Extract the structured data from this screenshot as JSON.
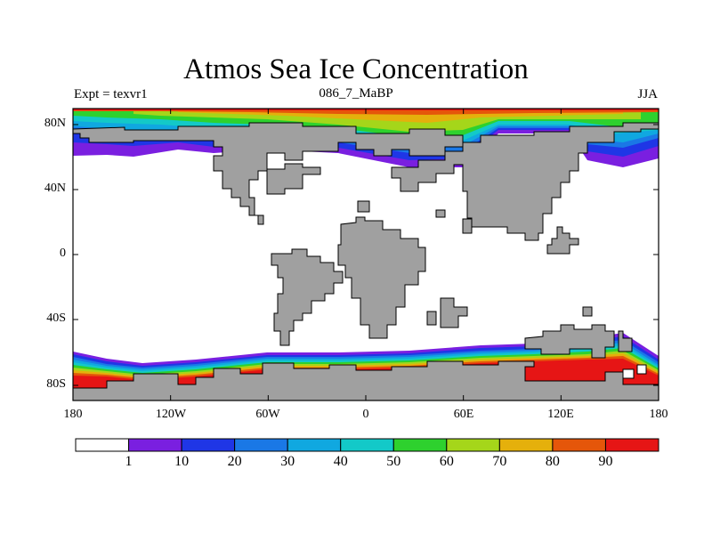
{
  "title": "Atmos Sea Ice Concentration",
  "subtitle": {
    "left": "Expt = texvr1",
    "center": "086_7_MaBP",
    "right": "JJA"
  },
  "map": {
    "projection": "cylindrical equidistant",
    "lat_labels": [
      "80N",
      "40N",
      "0",
      "40S",
      "80S"
    ],
    "lon_labels": [
      "180",
      "120W",
      "60W",
      "0",
      "60E",
      "120E",
      "180"
    ],
    "land_color": "#a0a0a0",
    "ocean_no_ice_color": "#ffffff"
  },
  "colorbar": {
    "labels": [
      "1",
      "10",
      "20",
      "30",
      "40",
      "50",
      "60",
      "70",
      "80",
      "90"
    ],
    "colors": [
      "#ffffff",
      "#7a1fe0",
      "#1f36e6",
      "#1a78e6",
      "#10a8e0",
      "#13c9c8",
      "#2ed12e",
      "#a5d61a",
      "#e5b00c",
      "#e5560a",
      "#e61515"
    ]
  }
}
